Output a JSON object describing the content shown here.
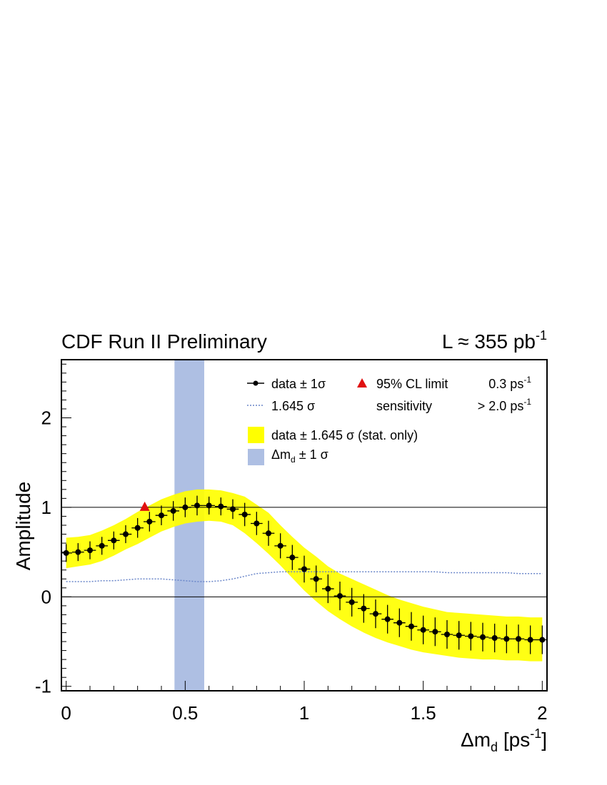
{
  "header": {
    "experiment": "CDF Run II Preliminary",
    "lumi_prefix": "L ≈ 355 pb",
    "lumi_sup": "-1"
  },
  "axes": {
    "ylabel": "Amplitude",
    "xlabel_delta": "Δm",
    "xlabel_sub": "d",
    "xlabel_mid": " [ps",
    "xlabel_sup": "-1",
    "xlabel_end": "]"
  },
  "legend": {
    "data": "data ± 1",
    "sigma": "σ",
    "sensitivity_curve": "1.645 ",
    "limit": "95% CL limit",
    "limit_value": "0.3 ps",
    "limit_sup": "-1",
    "sensitivity": "sensitivity",
    "sensitivity_value": "> 2.0 ps",
    "sensitivity_sup": "-1",
    "band": "data ± 1.645 ",
    "band_suffix": " (stat. only)",
    "dmd_delta": "Δm",
    "dmd_sub": "d",
    "dmd_suffix": " ± 1 "
  },
  "colors": {
    "band": "#ffff00",
    "dmd_band": "#aebfe3",
    "points": "#000000",
    "limit_marker": "#e01010",
    "sensitivity_line": "#6a86c9"
  },
  "chart_data": {
    "type": "scatter",
    "xlim": [
      -0.02,
      2.02
    ],
    "ylim": [
      -1.05,
      2.65
    ],
    "xticks": [
      0,
      0.5,
      1,
      1.5,
      2
    ],
    "xtick_labels": [
      "0",
      "0.5",
      "1",
      "1.5",
      "2"
    ],
    "yticks": [
      -1,
      0,
      1,
      2
    ],
    "ytick_labels": [
      "-1",
      "0",
      "1",
      "2"
    ],
    "reference_lines_y": [
      0,
      1
    ],
    "x": [
      0,
      0.05,
      0.1,
      0.15,
      0.2,
      0.25,
      0.3,
      0.35,
      0.4,
      0.45,
      0.5,
      0.55,
      0.6,
      0.65,
      0.7,
      0.75,
      0.8,
      0.85,
      0.9,
      0.95,
      1.0,
      1.05,
      1.1,
      1.15,
      1.2,
      1.25,
      1.3,
      1.35,
      1.4,
      1.45,
      1.5,
      1.55,
      1.6,
      1.65,
      1.7,
      1.75,
      1.8,
      1.85,
      1.9,
      1.95,
      2.0
    ],
    "series": [
      {
        "name": "data ± 1 σ",
        "y": [
          0.49,
          0.5,
          0.52,
          0.57,
          0.63,
          0.7,
          0.77,
          0.84,
          0.91,
          0.96,
          1.0,
          1.02,
          1.02,
          1.01,
          0.98,
          0.92,
          0.82,
          0.71,
          0.57,
          0.44,
          0.31,
          0.2,
          0.09,
          0.01,
          -0.06,
          -0.13,
          -0.19,
          -0.25,
          -0.29,
          -0.33,
          -0.37,
          -0.39,
          -0.42,
          -0.43,
          -0.44,
          -0.45,
          -0.46,
          -0.47,
          -0.47,
          -0.48,
          -0.48
        ],
        "err": [
          0.1,
          0.1,
          0.1,
          0.1,
          0.1,
          0.1,
          0.11,
          0.11,
          0.11,
          0.11,
          0.11,
          0.11,
          0.1,
          0.1,
          0.11,
          0.13,
          0.13,
          0.14,
          0.14,
          0.14,
          0.15,
          0.15,
          0.16,
          0.16,
          0.16,
          0.16,
          0.16,
          0.16,
          0.16,
          0.16,
          0.16,
          0.16,
          0.16,
          0.16,
          0.16,
          0.16,
          0.16,
          0.16,
          0.16,
          0.16,
          0.16
        ]
      },
      {
        "name": "data ± 1.645 σ (stat. only)",
        "band_low": [
          0.32,
          0.34,
          0.36,
          0.4,
          0.46,
          0.53,
          0.59,
          0.66,
          0.73,
          0.78,
          0.82,
          0.84,
          0.85,
          0.84,
          0.8,
          0.71,
          0.6,
          0.48,
          0.35,
          0.21,
          0.07,
          -0.05,
          -0.16,
          -0.25,
          -0.33,
          -0.4,
          -0.46,
          -0.51,
          -0.55,
          -0.59,
          -0.62,
          -0.64,
          -0.66,
          -0.68,
          -0.69,
          -0.7,
          -0.7,
          -0.71,
          -0.71,
          -0.72,
          -0.72
        ],
        "band_high": [
          0.66,
          0.67,
          0.69,
          0.74,
          0.8,
          0.87,
          0.95,
          1.02,
          1.09,
          1.14,
          1.18,
          1.2,
          1.2,
          1.19,
          1.16,
          1.12,
          1.03,
          0.94,
          0.8,
          0.67,
          0.55,
          0.45,
          0.34,
          0.26,
          0.2,
          0.14,
          0.08,
          0.02,
          -0.03,
          -0.07,
          -0.11,
          -0.14,
          -0.17,
          -0.18,
          -0.19,
          -0.2,
          -0.21,
          -0.22,
          -0.22,
          -0.23,
          -0.23
        ]
      },
      {
        "name": "1.645 σ",
        "style": "dotted",
        "y": [
          0.17,
          0.17,
          0.17,
          0.18,
          0.18,
          0.19,
          0.2,
          0.2,
          0.2,
          0.19,
          0.18,
          0.17,
          0.17,
          0.18,
          0.2,
          0.23,
          0.26,
          0.27,
          0.28,
          0.28,
          0.28,
          0.28,
          0.28,
          0.28,
          0.28,
          0.28,
          0.28,
          0.28,
          0.28,
          0.28,
          0.28,
          0.28,
          0.27,
          0.27,
          0.27,
          0.27,
          0.27,
          0.27,
          0.26,
          0.26,
          0.26
        ]
      }
    ],
    "dmd_band": {
      "x_low": 0.455,
      "x_high": 0.58
    },
    "limit_marker": {
      "x": 0.33,
      "y": 1.0
    }
  }
}
